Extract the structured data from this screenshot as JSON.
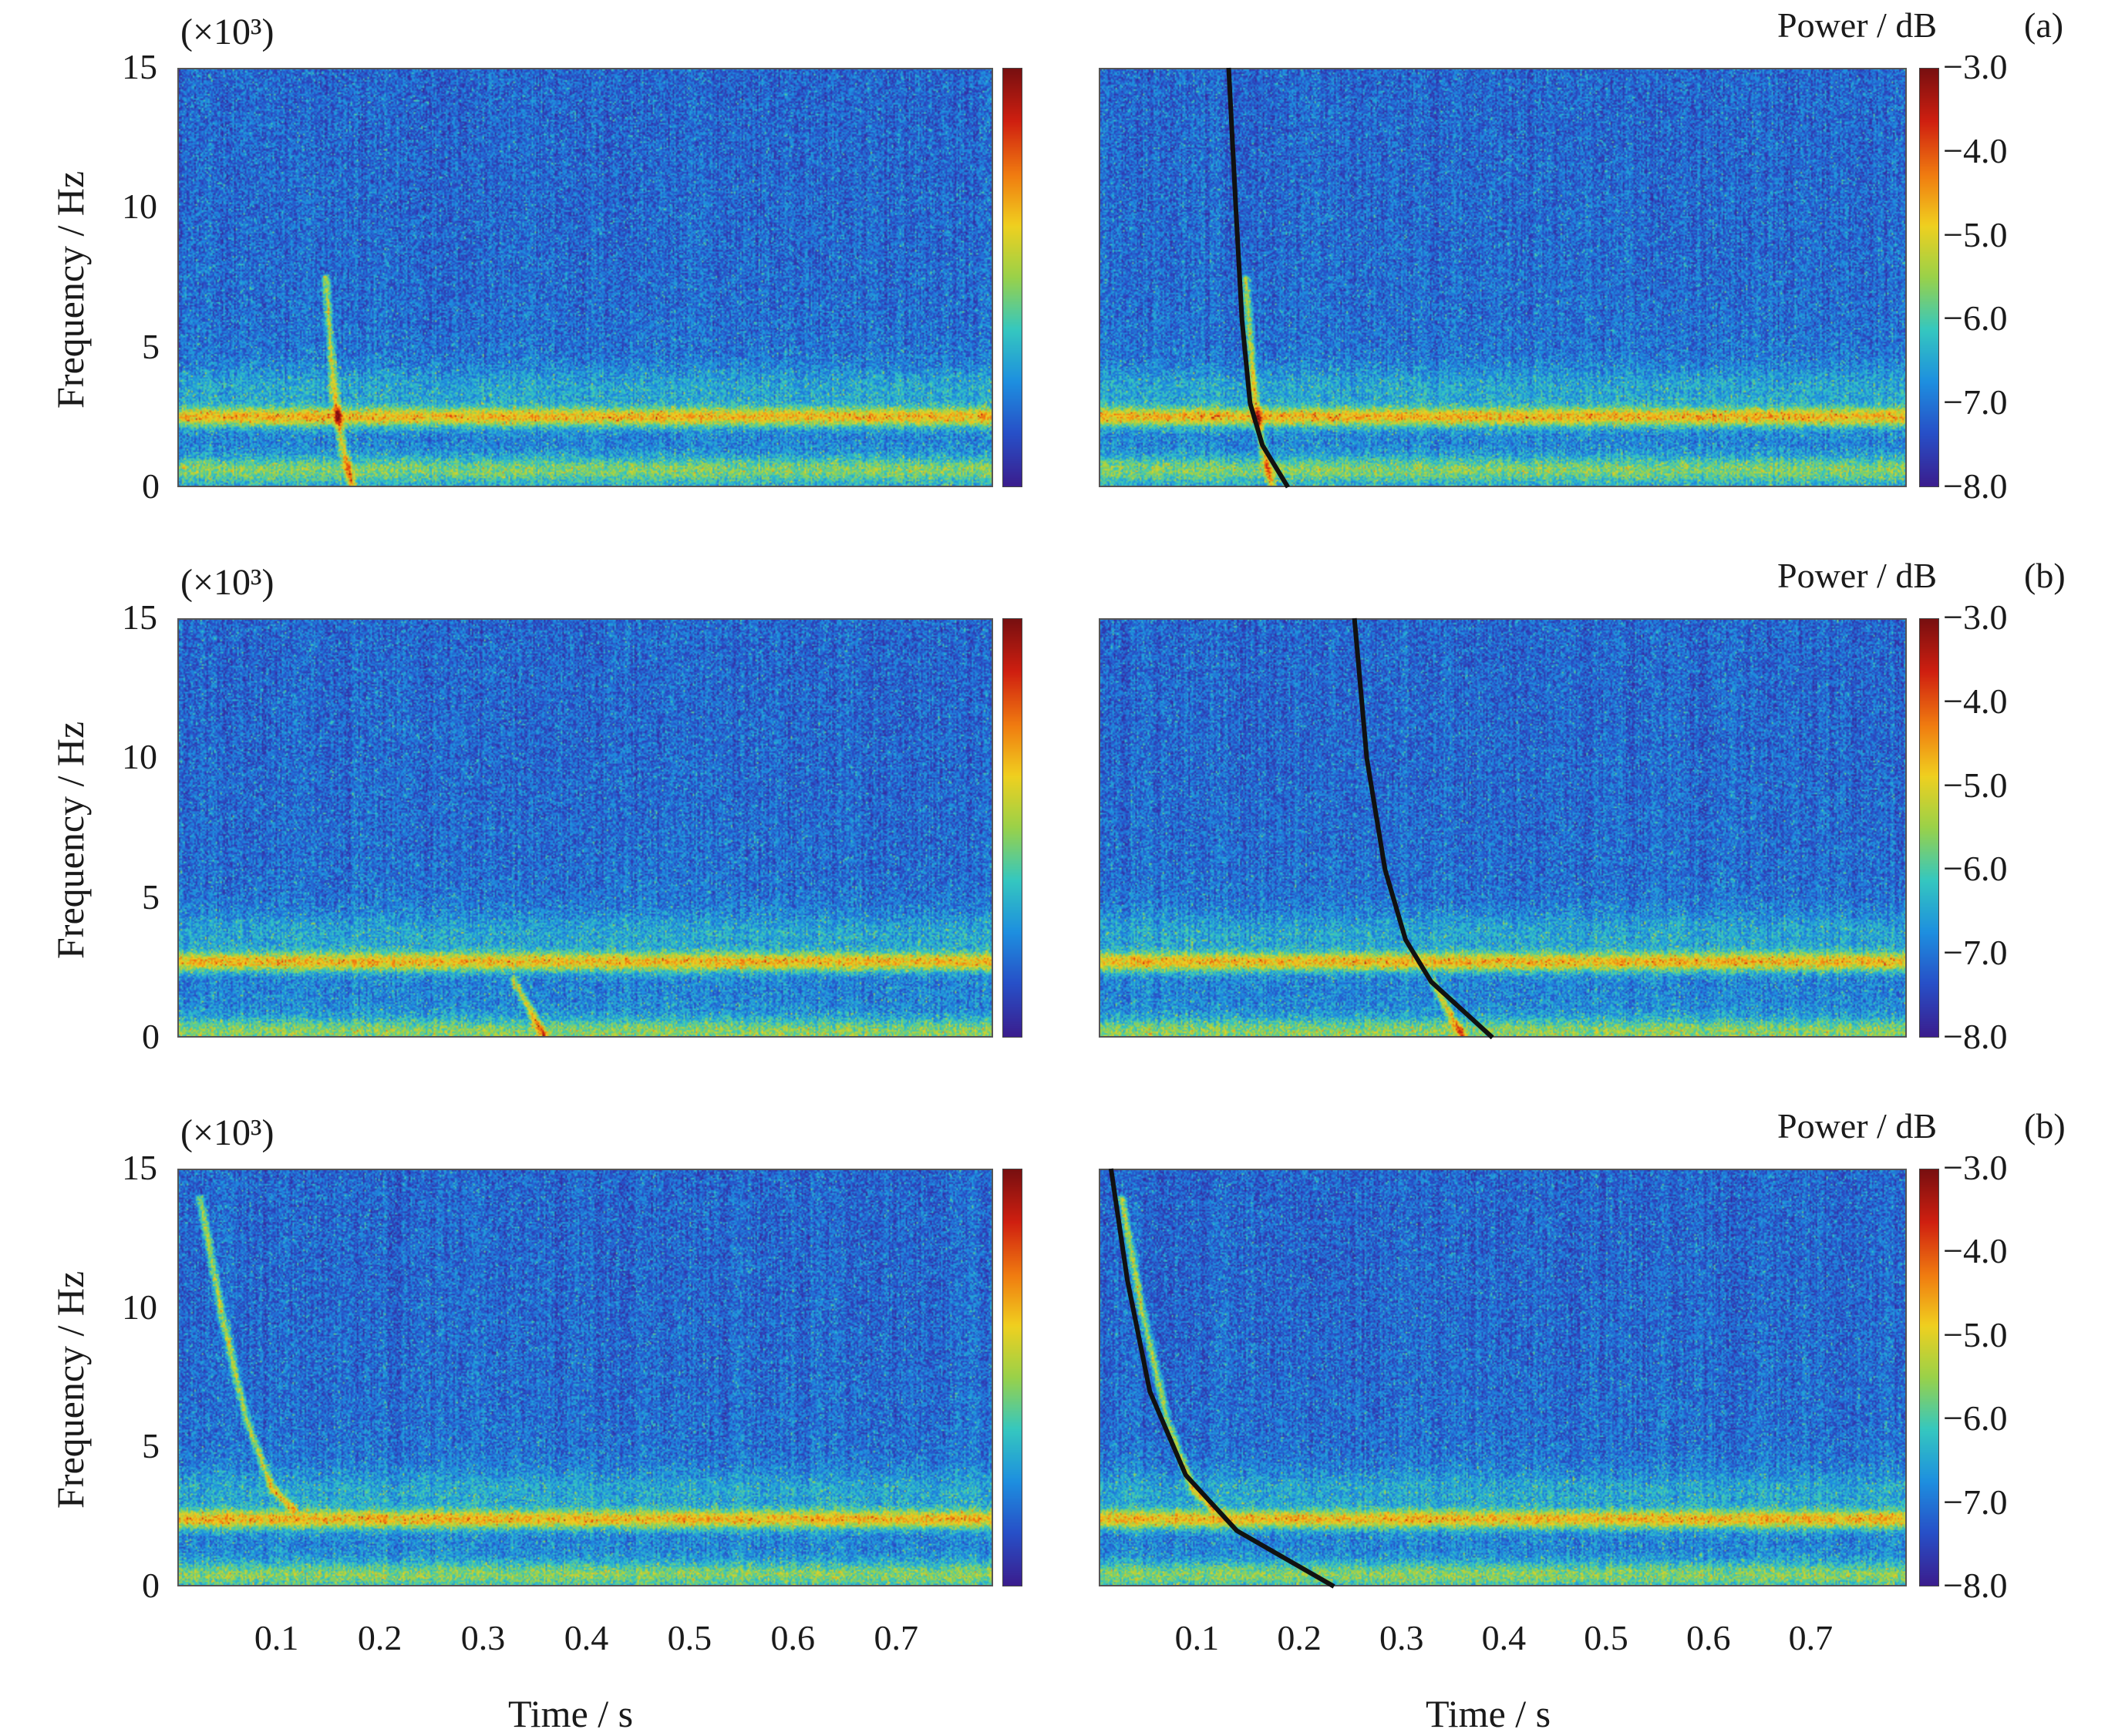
{
  "chart_data": {
    "type": "heatmap",
    "description_axes": {
      "xlabel": "Time / s",
      "ylabel": "Frequency / Hz",
      "y_multiplier": "(×10³)",
      "xticks": [
        "0.1",
        "0.2",
        "0.3",
        "0.4",
        "0.5",
        "0.6",
        "0.7"
      ],
      "xlim": [
        0,
        0.79
      ],
      "yticks": [
        "0",
        "5",
        "10",
        "15"
      ],
      "ylim": [
        0,
        15
      ]
    },
    "colorbar": {
      "label": "Power / dB",
      "ticks": [
        "−3.0",
        "−4.0",
        "−5.0",
        "−6.0",
        "−7.0",
        "−8.0"
      ],
      "range": [
        -8.0,
        -3.0
      ],
      "colormap": "jet",
      "colors": [
        "#3b1f8f",
        "#2850c8",
        "#1e90e0",
        "#36c8c0",
        "#9ad24a",
        "#f0d020",
        "#f07a10",
        "#d02010",
        "#7a1010"
      ]
    },
    "rows": [
      {
        "tag": "(a)",
        "band_khz": [
          2.5,
          0.6
        ],
        "left_ridge": {
          "x": [
            0.142,
            0.15,
            0.158,
            0.168
          ],
          "y": [
            7.5,
            3.5,
            1.5,
            0.0
          ]
        },
        "right_fit": {
          "x": [
            0.127,
            0.134,
            0.14,
            0.148,
            0.16,
            0.185
          ],
          "y": [
            15.0,
            10.0,
            6.0,
            3.0,
            1.5,
            0.0
          ]
        }
      },
      {
        "tag": "(b)",
        "band_khz": [
          2.7,
          0.2
        ],
        "left_ridge": {
          "x": [
            0.325,
            0.34,
            0.355
          ],
          "y": [
            2.0,
            1.0,
            0.0
          ]
        },
        "right_fit": {
          "x": [
            0.25,
            0.262,
            0.28,
            0.3,
            0.325,
            0.385
          ],
          "y": [
            15.0,
            10.0,
            6.0,
            3.5,
            2.0,
            0.0
          ]
        }
      },
      {
        "tag": "(b)",
        "band_khz": [
          2.4,
          0.4
        ],
        "left_ridge": {
          "x": [
            0.02,
            0.04,
            0.065,
            0.09,
            0.11
          ],
          "y": [
            14.0,
            10.0,
            6.0,
            3.5,
            2.8
          ]
        },
        "right_fit": {
          "x": [
            0.012,
            0.028,
            0.05,
            0.085,
            0.135,
            0.23
          ],
          "y": [
            15.0,
            11.0,
            7.0,
            4.0,
            2.0,
            0.0
          ]
        }
      }
    ]
  }
}
